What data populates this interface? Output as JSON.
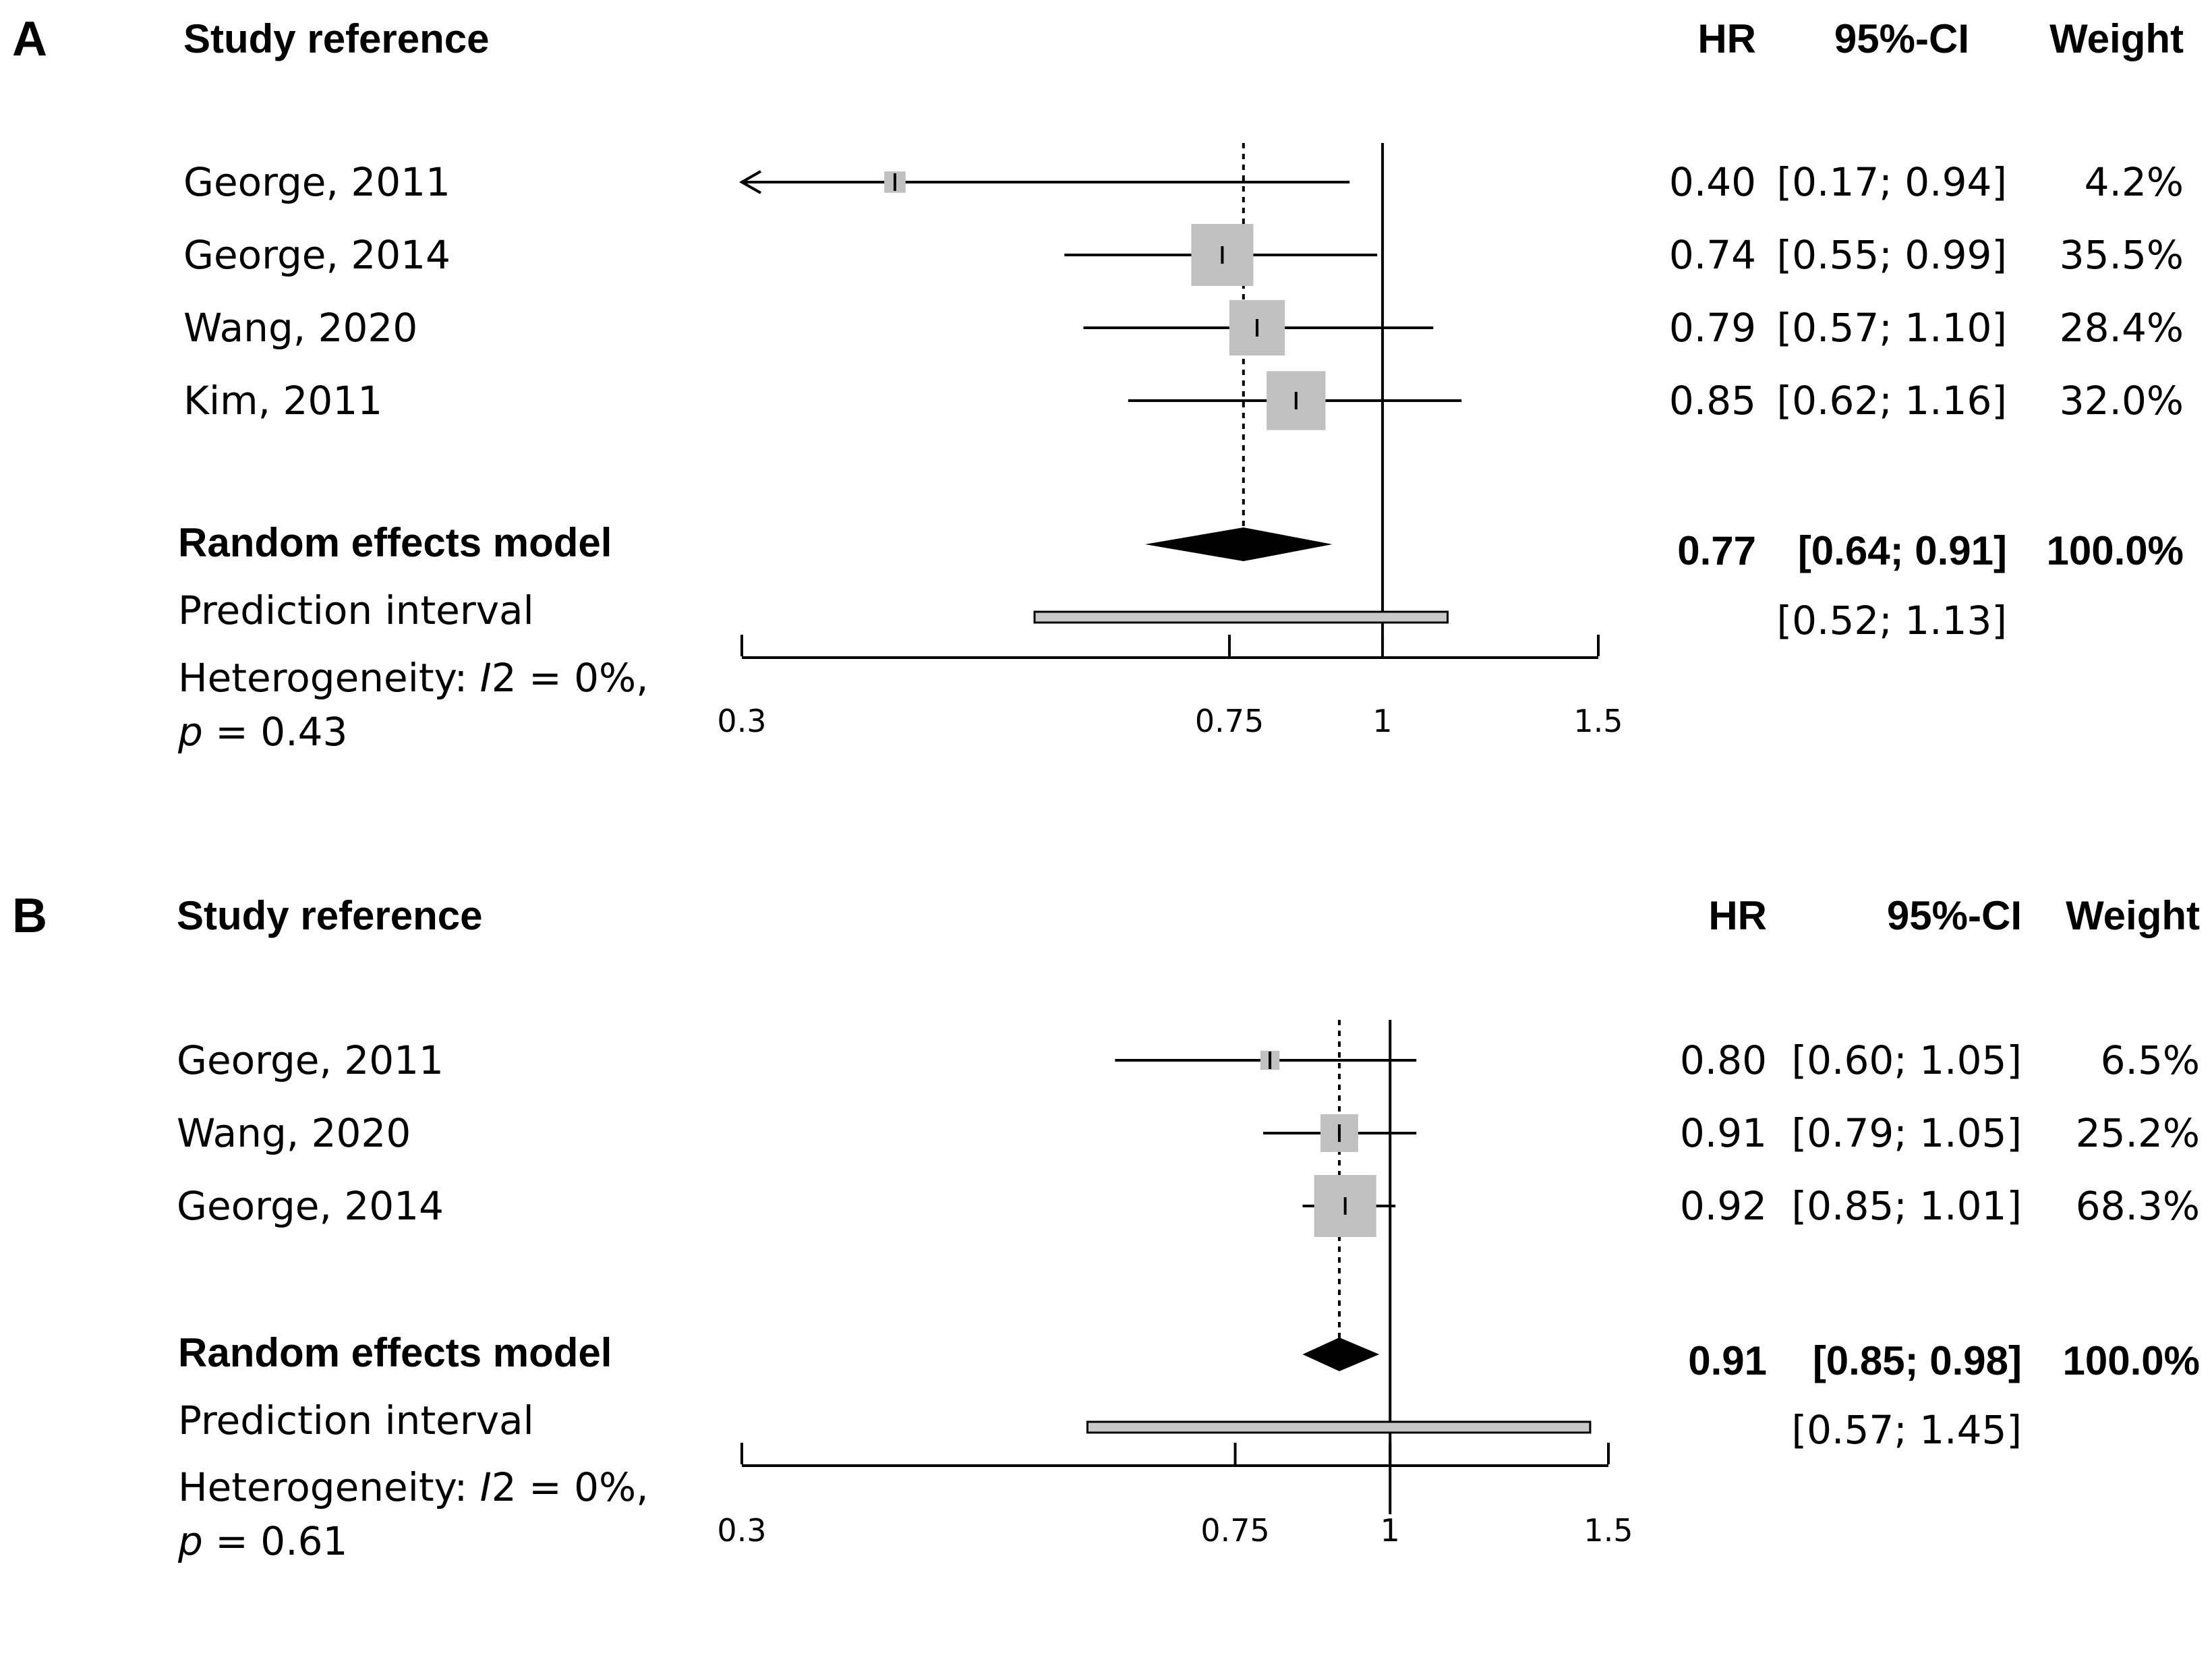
{
  "chart_data": [
    {
      "type": "forest",
      "panel_label": "A",
      "headers": {
        "study": "Study reference",
        "hr": "HR",
        "ci": "95%-CI",
        "weight": "Weight"
      },
      "axis": {
        "min": 0.3,
        "max": 1.5,
        "scale": "log",
        "ticks": [
          0.3,
          0.75,
          1,
          1.5
        ],
        "tick_labels": [
          "0.3",
          "0.75",
          "1",
          "1.5"
        ],
        "null_line": 1,
        "pooled_line": 0.77
      },
      "studies": [
        {
          "label": "George, 2011",
          "hr": 0.4,
          "lower": 0.17,
          "upper": 0.94,
          "weight_pct": 4.2,
          "hr_text": "0.40",
          "ci_text": "[0.17; 0.94]",
          "weight_text": "4.2%"
        },
        {
          "label": "George, 2014",
          "hr": 0.74,
          "lower": 0.55,
          "upper": 0.99,
          "weight_pct": 35.5,
          "hr_text": "0.74",
          "ci_text": "[0.55; 0.99]",
          "weight_text": "35.5%"
        },
        {
          "label": "Wang, 2020",
          "hr": 0.79,
          "lower": 0.57,
          "upper": 1.1,
          "weight_pct": 28.4,
          "hr_text": "0.79",
          "ci_text": "[0.57; 1.10]",
          "weight_text": "28.4%"
        },
        {
          "label": "Kim, 2011",
          "hr": 0.85,
          "lower": 0.62,
          "upper": 1.16,
          "weight_pct": 32.0,
          "hr_text": "0.85",
          "ci_text": "[0.62; 1.16]",
          "weight_text": "32.0%"
        }
      ],
      "pooled": {
        "label": "Random effects model",
        "hr": 0.77,
        "lower": 0.64,
        "upper": 0.91,
        "hr_text": "0.77",
        "ci_text": "[0.64; 0.91]",
        "weight_text": "100.0%"
      },
      "prediction": {
        "label": "Prediction interval",
        "lower": 0.52,
        "upper": 1.13,
        "ci_text": "[0.52; 1.13]"
      },
      "heterogeneity": {
        "prefix": "Heterogeneity: ",
        "i2_symbol": "I",
        "i2_rest": "2 = 0%,",
        "p_symbol": "p",
        "p_rest": " = 0.43"
      }
    },
    {
      "type": "forest",
      "panel_label": "B",
      "headers": {
        "study": "Study reference",
        "hr": "HR",
        "ci": "95%-CI",
        "weight": "Weight"
      },
      "axis": {
        "min": 0.3,
        "max": 1.5,
        "scale": "log",
        "ticks": [
          0.3,
          0.75,
          1,
          1.5
        ],
        "tick_labels": [
          "0.3",
          "0.75",
          "1",
          "1.5"
        ],
        "null_line": 1,
        "pooled_line": 0.91
      },
      "studies": [
        {
          "label": "George, 2011",
          "hr": 0.8,
          "lower": 0.6,
          "upper": 1.05,
          "weight_pct": 6.5,
          "hr_text": "0.80",
          "ci_text": "[0.60; 1.05]",
          "weight_text": "6.5%"
        },
        {
          "label": "Wang, 2020",
          "hr": 0.91,
          "lower": 0.79,
          "upper": 1.05,
          "weight_pct": 25.2,
          "hr_text": "0.91",
          "ci_text": "[0.79; 1.05]",
          "weight_text": "25.2%"
        },
        {
          "label": "George, 2014",
          "hr": 0.92,
          "lower": 0.85,
          "upper": 1.01,
          "weight_pct": 68.3,
          "hr_text": "0.92",
          "ci_text": "[0.85; 1.01]",
          "weight_text": "68.3%"
        }
      ],
      "pooled": {
        "label": "Random effects model",
        "hr": 0.91,
        "lower": 0.85,
        "upper": 0.98,
        "hr_text": "0.91",
        "ci_text": "[0.85; 0.98]",
        "weight_text": "100.0%"
      },
      "prediction": {
        "label": "Prediction interval",
        "lower": 0.57,
        "upper": 1.45,
        "ci_text": "[0.57; 1.45]"
      },
      "heterogeneity": {
        "prefix": "Heterogeneity: ",
        "i2_symbol": "I",
        "i2_rest": "2 = 0%,",
        "p_symbol": "p",
        "p_rest": " = 0.61"
      }
    }
  ]
}
